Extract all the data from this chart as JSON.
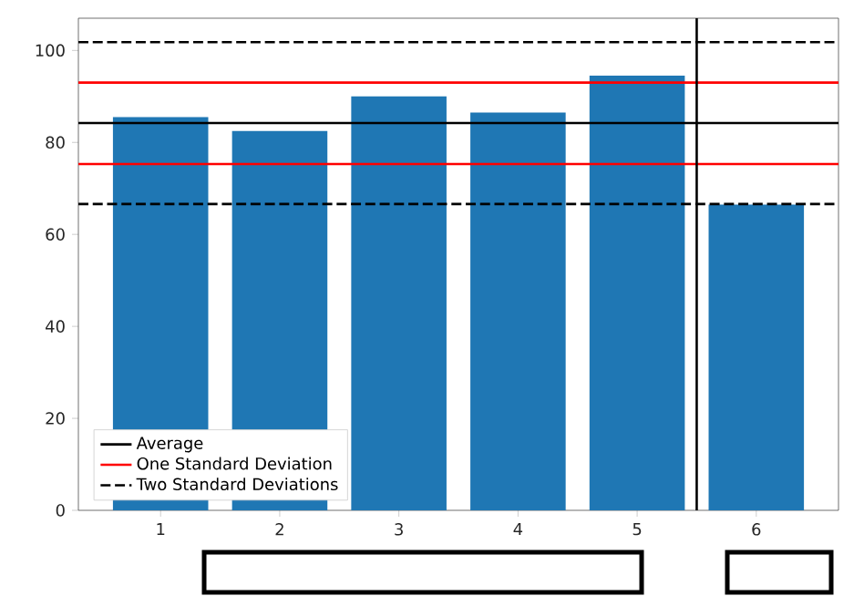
{
  "chart_data": {
    "type": "bar",
    "x": [
      1,
      2,
      3,
      4,
      5,
      6
    ],
    "values": [
      85.5,
      82.5,
      90,
      86.5,
      94.5,
      66.5
    ],
    "color": "#1f77b4",
    "xlim": [
      0.31,
      6.69
    ],
    "xticks": [
      1,
      2,
      3,
      4,
      5,
      6
    ],
    "ylim": [
      0,
      107
    ],
    "yticks": [
      0,
      20,
      40,
      60,
      80,
      100
    ],
    "legend": "bottom left",
    "ref_lines": [
      {
        "axis": "y",
        "value": 84.2,
        "label": "Average",
        "color": "#000000",
        "line_style": "solid"
      },
      {
        "axis": "y",
        "value": 93.0,
        "label": "One Standard Deviation",
        "color": "#ff0000",
        "line_style": "solid"
      },
      {
        "axis": "y",
        "value": 75.3,
        "color": "#ff0000",
        "line_style": "solid"
      },
      {
        "axis": "y",
        "value": 101.8,
        "label": "Two Standard Deviations",
        "color": "#000000",
        "line_style": "dashed"
      },
      {
        "axis": "y",
        "value": 66.6,
        "color": "#000000",
        "line_style": "dashed"
      },
      {
        "axis": "x",
        "value": 5.5,
        "color": "#000000",
        "line_style": "solid"
      }
    ]
  }
}
